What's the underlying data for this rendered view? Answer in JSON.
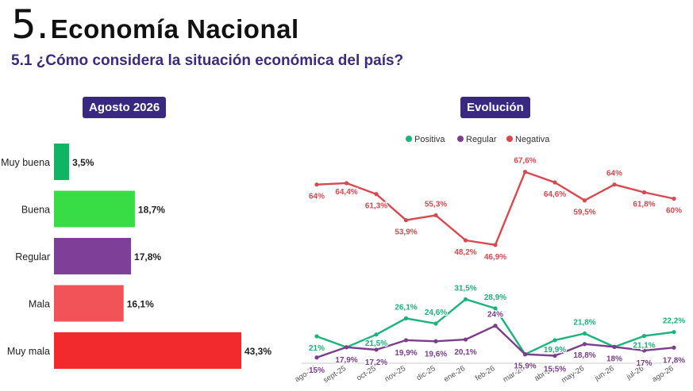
{
  "header": {
    "section_number": "5.",
    "section_title": "Economía Nacional",
    "question": "5.1 ¿Cómo considera la situación económica del país?"
  },
  "bar_panel": {
    "badge": "Agosto 2026"
  },
  "line_panel": {
    "badge": "Evolución"
  },
  "chart_data": [
    {
      "type": "bar",
      "orientation": "horizontal",
      "title": "Agosto 2026",
      "categories": [
        "Muy buena",
        "Buena",
        "Regular",
        "Mala",
        "Muy mala"
      ],
      "values": [
        3.5,
        18.7,
        17.8,
        16.1,
        43.3
      ],
      "labels": [
        "3,5%",
        "18,7%",
        "17,8%",
        "16,1%",
        "43,3%"
      ],
      "colors": [
        "#10b564",
        "#38dd45",
        "#7e3f99",
        "#f25359",
        "#f22a2e"
      ],
      "xlim": [
        0,
        43.3
      ]
    },
    {
      "type": "line",
      "title": "Evolución",
      "x": [
        "ago-25",
        "sept-25",
        "oct-25",
        "nov-25",
        "dic-25",
        "ene-26",
        "feb-26",
        "mar-26",
        "abr-26",
        "may-26",
        "jun-26",
        "jul-26",
        "ago-26"
      ],
      "ylim": [
        10,
        70
      ],
      "legend_position": "top",
      "series": [
        {
          "name": "Positiva",
          "color": "#1ab37b",
          "values": [
            21,
            17.9,
            21.5,
            26.1,
            24.6,
            31.5,
            28.9,
            15.9,
            19.9,
            21.8,
            18,
            21.1,
            22.2
          ],
          "labels": [
            "21%",
            "",
            "21,5%",
            "26,1%",
            "24,6%",
            "31,5%",
            "28,9%",
            "",
            "19,9%",
            "21,8%",
            "",
            "21,1%",
            "22,2%"
          ]
        },
        {
          "name": "Regular",
          "color": "#7a3e8c",
          "values": [
            15,
            17.9,
            17.2,
            19.9,
            19.6,
            20.1,
            24,
            15.9,
            15.5,
            18.8,
            18,
            17,
            17.8
          ],
          "labels": [
            "15%",
            "17,9%",
            "17,2%",
            "19,9%",
            "19,6%",
            "20,1%",
            "24%",
            "15,9%",
            "15,5%",
            "18,8%",
            "18%",
            "17%",
            "17,8%"
          ]
        },
        {
          "name": "Negativa",
          "color": "#d9484f",
          "values": [
            64,
            64.4,
            61.3,
            53.9,
            55.3,
            48.2,
            46.9,
            67.6,
            64.6,
            59.5,
            64,
            61.8,
            60
          ],
          "labels": [
            "64%",
            "64,4%",
            "61,3%",
            "53,9%",
            "55,3%",
            "48,2%",
            "46,9%",
            "67,6%",
            "64,6%",
            "59,5%",
            "64%",
            "61,8%",
            "60%"
          ]
        }
      ]
    }
  ]
}
